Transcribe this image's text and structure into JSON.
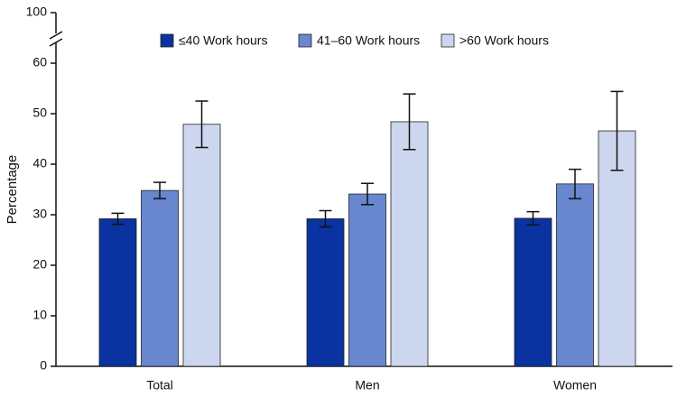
{
  "chart_data": {
    "type": "bar",
    "y_label": "Percentage",
    "categories": [
      "Total",
      "Men",
      "Women"
    ],
    "series": [
      {
        "name": "≤40 Work hours",
        "color": "#0a32a0",
        "values": [
          29.2,
          29.2,
          29.3
        ],
        "errors": [
          1.1,
          1.6,
          1.3
        ]
      },
      {
        "name": "41–60 Work hours",
        "color": "#6887cf",
        "values": [
          34.8,
          34.1,
          36.1
        ],
        "errors": [
          1.6,
          2.1,
          2.9
        ]
      },
      {
        "name": ">60 Work hours",
        "color": "#cdd6ef",
        "values": [
          47.9,
          48.4,
          46.6
        ],
        "errors": [
          4.6,
          5.5,
          7.8
        ]
      }
    ],
    "ylim": [
      0,
      100
    ],
    "yticks": [
      0,
      10,
      20,
      30,
      40,
      50,
      60,
      100
    ],
    "axis_break": [
      63,
      97
    ],
    "legend": "top",
    "grid": false
  }
}
